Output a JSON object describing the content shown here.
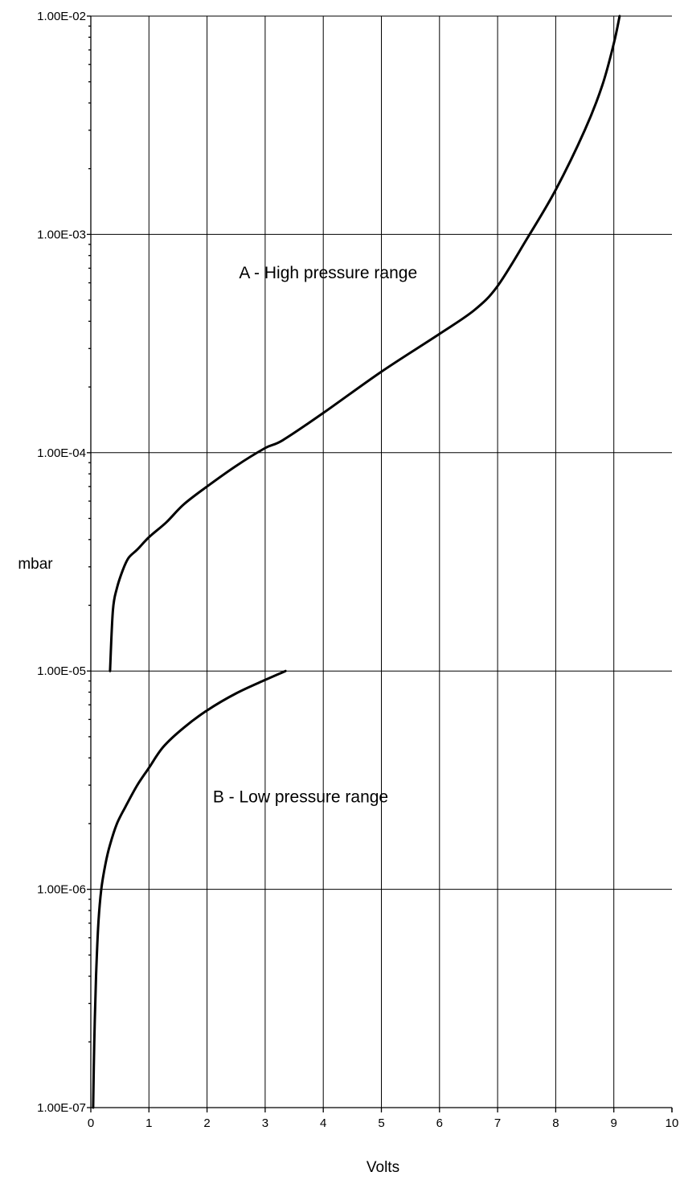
{
  "chart_data": {
    "type": "line",
    "xlabel": "Volts",
    "ylabel": "mbar",
    "xlim": [
      0,
      10
    ],
    "ylim": [
      1e-07,
      0.01
    ],
    "yscale": "log",
    "grid": true,
    "x_ticks": [
      "0",
      "1",
      "2",
      "3",
      "4",
      "5",
      "6",
      "7",
      "8",
      "9",
      "10"
    ],
    "y_ticks": [
      "1.00E-07",
      "1.00E-06",
      "1.00E-05",
      "1.00E-04",
      "1.00E-03",
      "1.00E-02"
    ],
    "annotations": [
      {
        "text": "A - High pressure range",
        "x": 2.55,
        "y": 0.00063
      },
      {
        "text": "B - Low pressure range",
        "x": 2.1,
        "y": 2.5e-06
      }
    ],
    "series": [
      {
        "color": "#000000",
        "x": [
          0.33,
          0.38,
          0.45,
          0.55,
          0.65,
          0.8,
          1.0,
          1.3,
          1.6,
          2.0,
          2.5,
          3.0,
          3.3,
          4.0,
          5.0,
          6.0,
          6.6,
          7.0,
          7.5,
          8.0,
          8.5,
          8.8,
          9.0,
          9.1
        ],
        "y": [
          1e-05,
          1.9e-05,
          2.4e-05,
          2.9e-05,
          3.3e-05,
          3.6e-05,
          4.1e-05,
          4.8e-05,
          5.8e-05,
          7e-05,
          8.7e-05,
          0.000105,
          0.000114,
          0.000152,
          0.000235,
          0.00035,
          0.00045,
          0.00058,
          0.00095,
          0.0016,
          0.003,
          0.0048,
          0.0075,
          0.01
        ]
      },
      {
        "color": "#000000",
        "x": [
          0.04,
          0.06,
          0.09,
          0.13,
          0.18,
          0.25,
          0.33,
          0.45,
          0.6,
          0.8,
          1.0,
          1.25,
          1.6,
          2.0,
          2.5,
          3.0,
          3.35
        ],
        "y": [
          1e-07,
          2e-07,
          4e-07,
          7e-07,
          1e-06,
          1.3e-06,
          1.6e-06,
          2e-06,
          2.4e-06,
          3e-06,
          3.6e-06,
          4.5e-06,
          5.5e-06,
          6.6e-06,
          7.9e-06,
          9.1e-06,
          1e-05
        ]
      }
    ]
  }
}
